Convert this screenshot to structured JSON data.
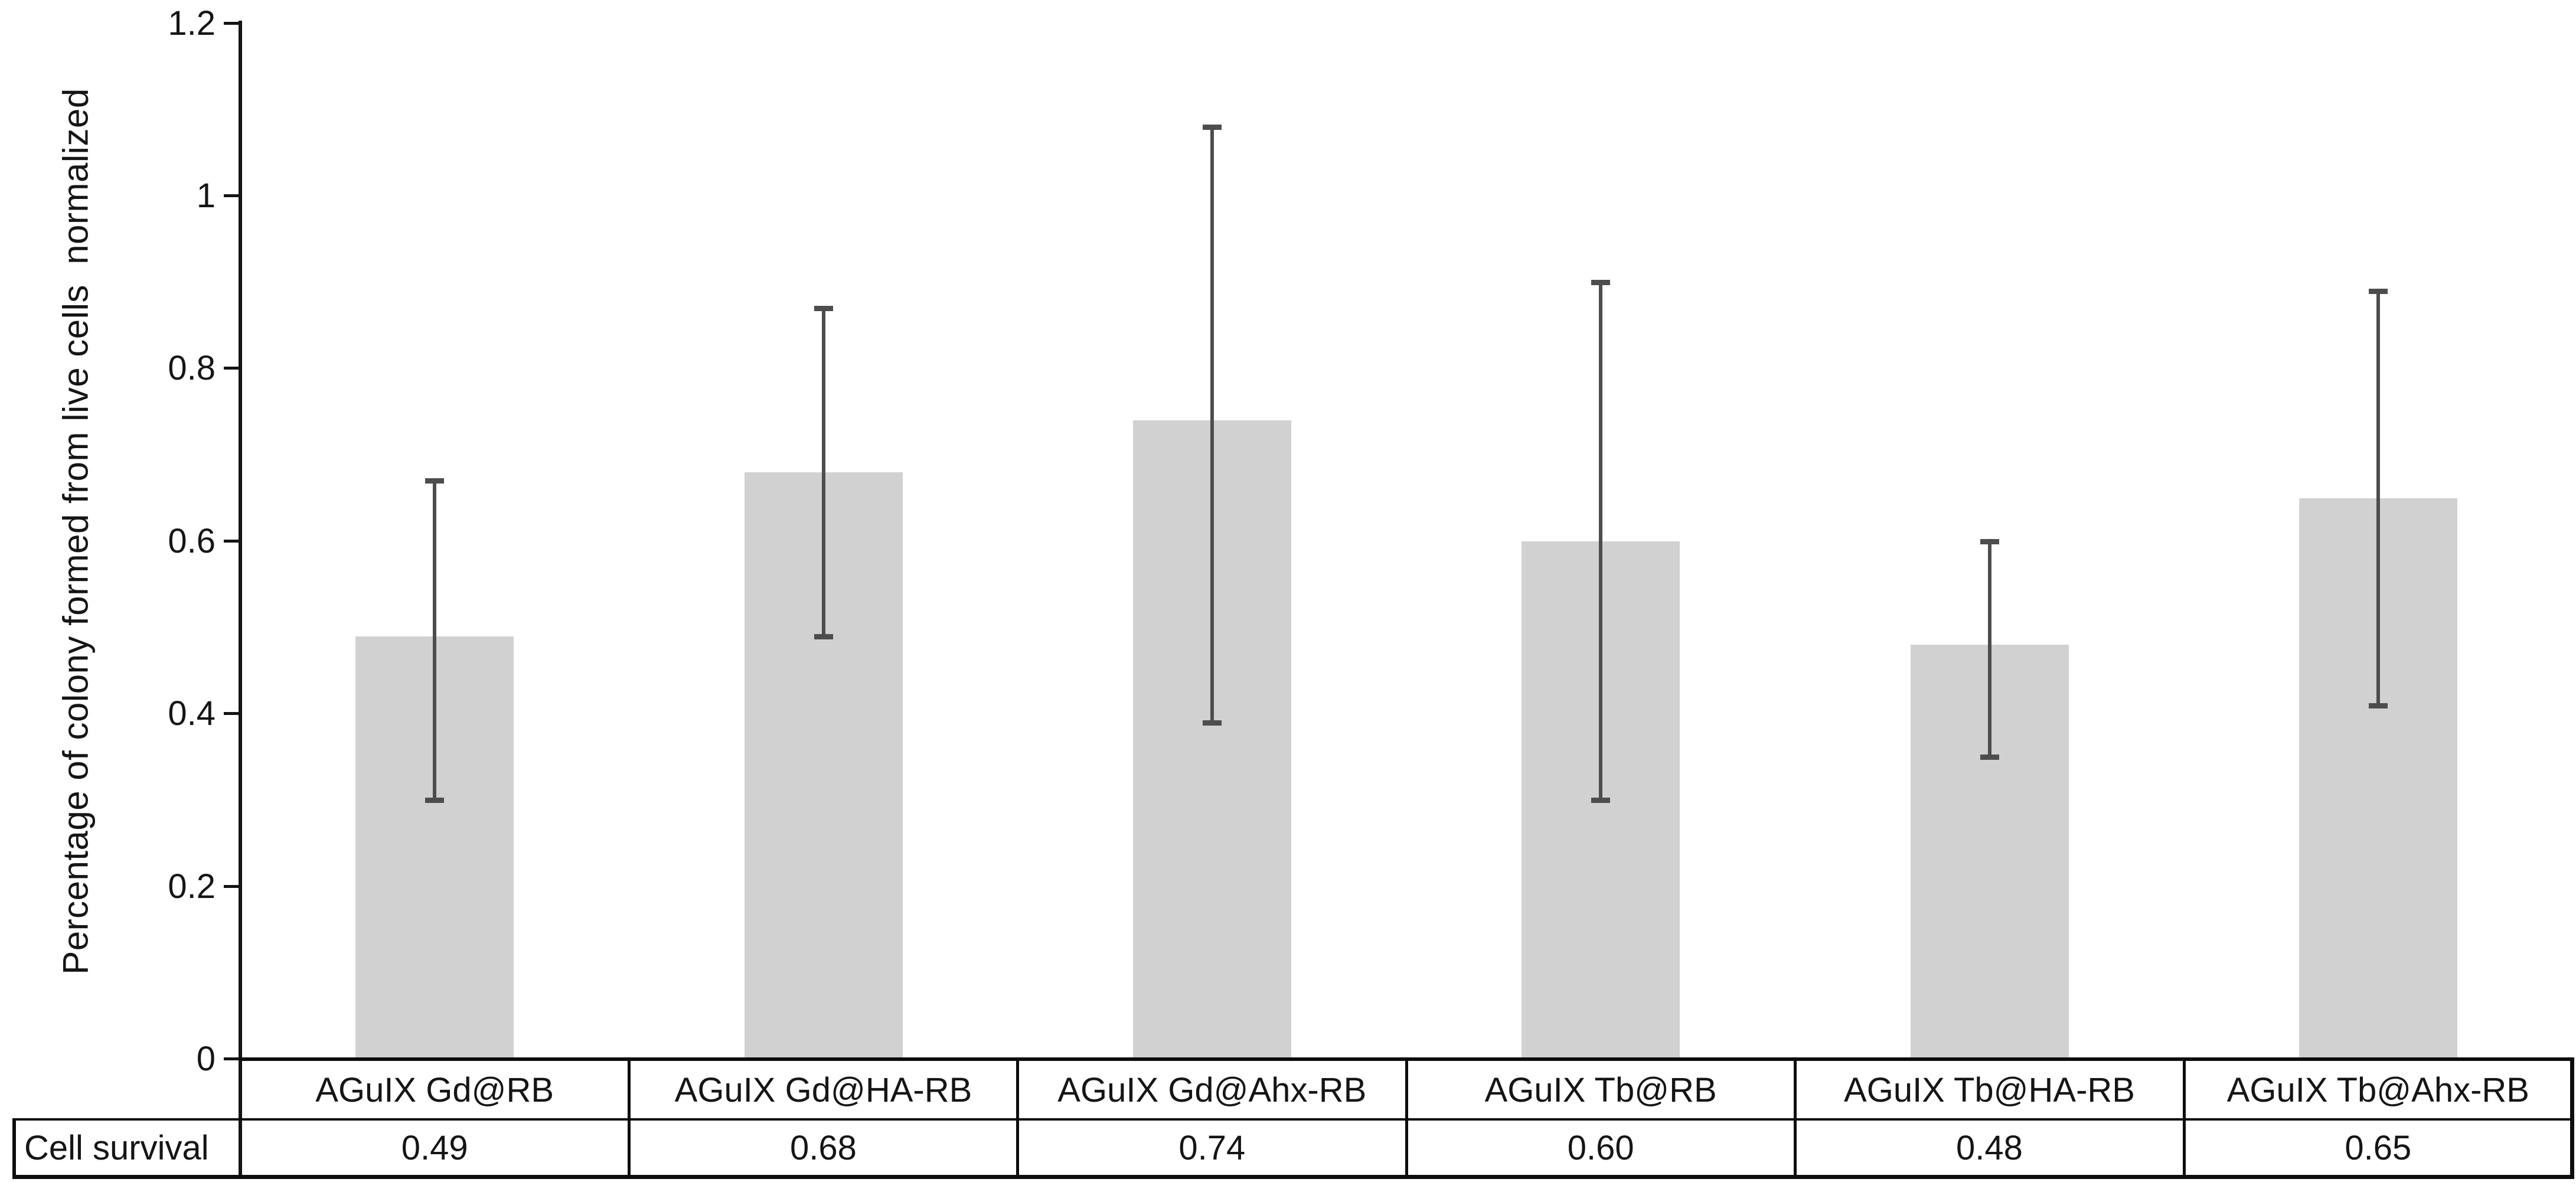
{
  "chart_data": {
    "type": "bar",
    "title": "",
    "xlabel": "",
    "ylabel": "Percentage of colony formed from live cells  normalized",
    "categories": [
      "AGuIX Gd@RB",
      "AGuIX Gd@HA-RB",
      "AGuIX Gd@Ahx-RB",
      "AGuIX Tb@RB",
      "AGuIX Tb@HA-RB",
      "AGuIX Tb@Ahx-RB"
    ],
    "values": [
      0.49,
      0.68,
      0.74,
      0.6,
      0.48,
      0.65
    ],
    "error_low": [
      0.3,
      0.49,
      0.39,
      0.3,
      0.35,
      0.41
    ],
    "error_high": [
      0.67,
      0.87,
      1.08,
      0.9,
      0.6,
      0.89
    ],
    "ylim": [
      0,
      1.2
    ],
    "yticks": [
      0,
      0.2,
      0.4,
      0.6,
      0.8,
      1,
      1.2
    ],
    "ytick_labels": [
      "0",
      "0.2",
      "0.4",
      "0.6",
      "0.8",
      "1",
      "1.2"
    ],
    "grid": false,
    "legend_position": "none",
    "bar_color": "#d1d1d1",
    "error_bar_color": "#4d4d4d",
    "axis_color": "#141414",
    "table": {
      "row_label": "Cell survival",
      "row_values": [
        "0.49",
        "0.68",
        "0.74",
        "0.60",
        "0.48",
        "0.65"
      ]
    }
  }
}
